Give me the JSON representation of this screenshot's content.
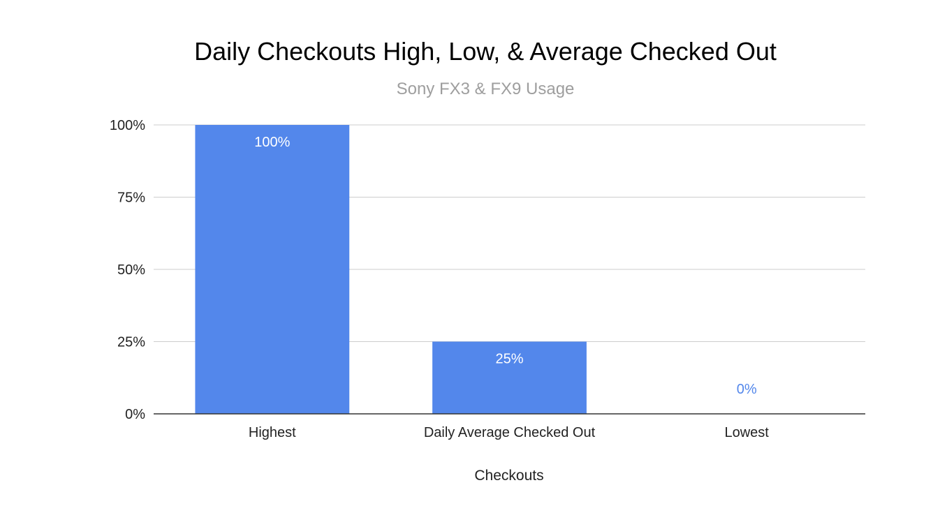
{
  "colors": {
    "bar": "#5387eb",
    "grid": "#cccccc",
    "axis": "#333333",
    "label_inside": "#ffffff",
    "label_outside": "#5387eb"
  },
  "chart_data": {
    "type": "bar",
    "title": "Daily Checkouts High, Low, & Average Checked Out",
    "subtitle": "Sony FX3 & FX9 Usage",
    "xlabel": "Checkouts",
    "ylabel": "",
    "categories": [
      "Highest",
      "Daily Average Checked Out",
      "Lowest"
    ],
    "values": [
      1.0,
      0.25,
      0.0
    ],
    "data_labels": [
      "100%",
      "25%",
      "0%"
    ],
    "y_ticks": [
      0,
      0.25,
      0.5,
      0.75,
      1.0
    ],
    "y_tick_labels": [
      "0%",
      "25%",
      "50%",
      "75%",
      "100%"
    ],
    "ylim": [
      0,
      1.0
    ],
    "grid": true,
    "legend": "none"
  }
}
